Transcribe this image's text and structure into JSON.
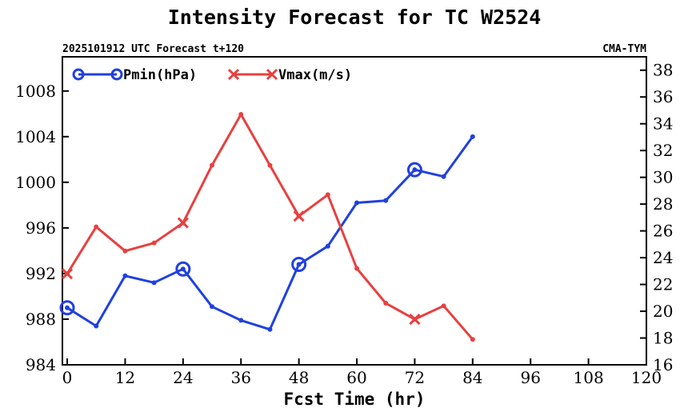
{
  "chart_data": {
    "type": "line",
    "title": "Intensity Forecast for TC W2524",
    "subtitle_left": "2025101912 UTC Forecast t+120",
    "subtitle_right": "CMA-TYM",
    "xlabel": "Fcst Time (hr)",
    "xlim": [
      -1,
      120
    ],
    "xticks": [
      0,
      12,
      24,
      36,
      48,
      60,
      72,
      84,
      96,
      108,
      120
    ],
    "xtick_labels": [
      "0",
      "12",
      "24",
      "36",
      "48",
      "60",
      "72",
      "84",
      "96",
      "108",
      "120"
    ],
    "y_left": {
      "label": "Pmin(hPa)",
      "lim": [
        984,
        1011
      ],
      "ticks": [
        984,
        988,
        992,
        996,
        1000,
        1004,
        1008
      ],
      "tick_labels": [
        "984",
        "988",
        "992",
        "996",
        "1000",
        "1004",
        "1008"
      ]
    },
    "y_right": {
      "label": "Vmax(m/s)",
      "lim": [
        16,
        39
      ],
      "ticks": [
        16,
        18,
        20,
        22,
        24,
        26,
        28,
        30,
        32,
        34,
        36,
        38
      ],
      "tick_labels": [
        "16",
        "18",
        "20",
        "22",
        "24",
        "26",
        "28",
        "30",
        "32",
        "34",
        "36",
        "38"
      ]
    },
    "series": [
      {
        "name": "Pmin(hPa)",
        "axis": "left",
        "color": "#2040e0",
        "marker": "circle",
        "x": [
          0,
          6,
          12,
          18,
          24,
          30,
          36,
          42,
          48,
          54,
          60,
          66,
          72,
          78,
          84
        ],
        "values": [
          989.0,
          987.4,
          991.8,
          991.2,
          992.4,
          989.1,
          987.9,
          987.1,
          992.8,
          994.4,
          998.2,
          998.4,
          1001.1,
          1000.5,
          1004.0
        ],
        "major_marker_x": [
          0,
          24,
          48,
          72
        ]
      },
      {
        "name": "Vmax(m/s)",
        "axis": "right",
        "color": "#e84040",
        "marker": "x",
        "x": [
          0,
          6,
          12,
          18,
          24,
          30,
          36,
          42,
          48,
          54,
          60,
          66,
          72,
          78,
          84
        ],
        "values": [
          22.8,
          26.3,
          24.5,
          25.1,
          26.6,
          30.9,
          34.7,
          30.9,
          27.1,
          28.7,
          23.2,
          20.6,
          19.4,
          20.4,
          17.9
        ],
        "major_marker_x": [
          0,
          24,
          48,
          72
        ]
      }
    ],
    "legend_position": "top-left",
    "grid": false
  }
}
